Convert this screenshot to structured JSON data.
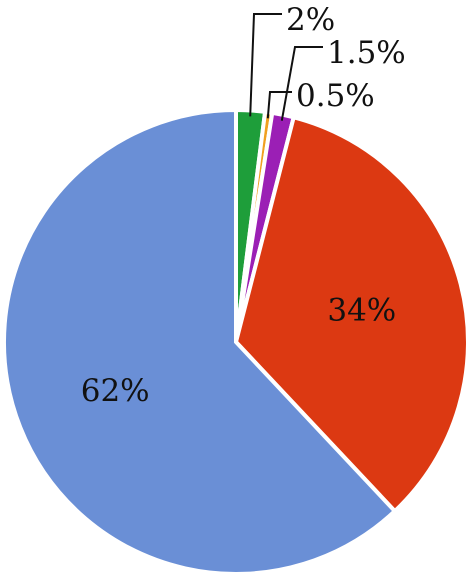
{
  "chart_data": {
    "type": "pie",
    "title": "",
    "start_angle_deg": 0,
    "direction": "clockwise",
    "slices": [
      {
        "label": "2%",
        "value": 2,
        "color": "#1e9e3a"
      },
      {
        "label": "0.5%",
        "value": 0.5,
        "color": "#f0a020"
      },
      {
        "label": "1.5%",
        "value": 1.5,
        "color": "#9b1fb5"
      },
      {
        "label": "34%",
        "value": 34,
        "color": "#dc3912"
      },
      {
        "label": "62%",
        "value": 62,
        "color": "#6a8fd6"
      }
    ]
  }
}
